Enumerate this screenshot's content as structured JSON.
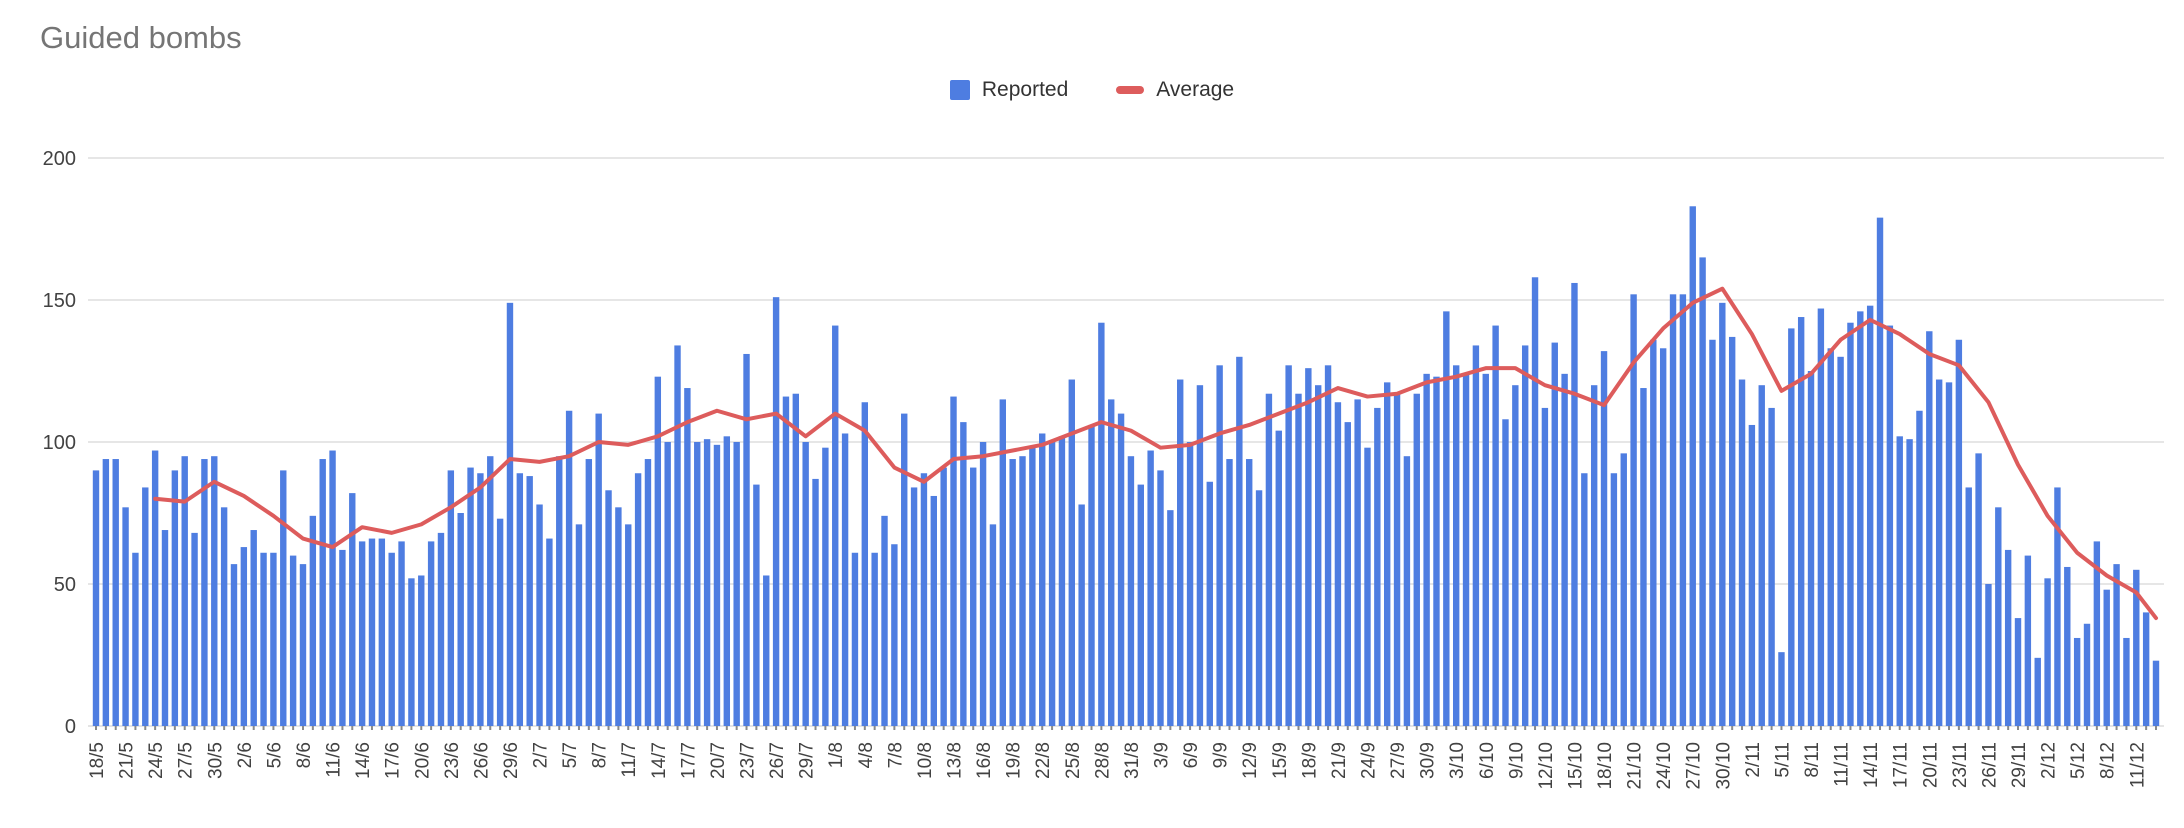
{
  "title": "Guided bombs",
  "legend": {
    "reported": "Reported",
    "average": "Average"
  },
  "colors": {
    "bar": "#4e7de1",
    "line": "#dd5c5c",
    "title_text": "#757575",
    "axis_text": "#424242",
    "legend_text": "#333333",
    "gridline": "#e6e6e6",
    "baseline": "#c9c9c9",
    "tick": "#8a8a8a",
    "background": "#ffffff"
  },
  "y_axis_tick_labels": [
    "0",
    "50",
    "100",
    "150",
    "200"
  ],
  "chart_data": {
    "type": "bar",
    "title": "Guided bombs",
    "xlabel": "",
    "ylabel": "",
    "ylim": [
      0,
      200
    ],
    "y_ticks": [
      0,
      50,
      100,
      150,
      200
    ],
    "grid": true,
    "legend_position": "top-center",
    "x_tick_every": 3,
    "categories": [
      "18/5",
      "19/5",
      "20/5",
      "21/5",
      "22/5",
      "23/5",
      "24/5",
      "25/5",
      "26/5",
      "27/5",
      "28/5",
      "29/5",
      "30/5",
      "31/5",
      "1/6",
      "2/6",
      "3/6",
      "4/6",
      "5/6",
      "6/6",
      "7/6",
      "8/6",
      "9/6",
      "10/6",
      "11/6",
      "12/6",
      "13/6",
      "14/6",
      "15/6",
      "16/6",
      "17/6",
      "18/6",
      "19/6",
      "20/6",
      "21/6",
      "22/6",
      "23/6",
      "24/6",
      "25/6",
      "26/6",
      "27/6",
      "28/6",
      "29/6",
      "30/6",
      "1/7",
      "2/7",
      "3/7",
      "4/7",
      "5/7",
      "6/7",
      "7/7",
      "8/7",
      "9/7",
      "10/7",
      "11/7",
      "12/7",
      "13/7",
      "14/7",
      "15/7",
      "16/7",
      "17/7",
      "18/7",
      "19/7",
      "20/7",
      "21/7",
      "22/7",
      "23/7",
      "24/7",
      "25/7",
      "26/7",
      "27/7",
      "28/7",
      "29/7",
      "30/7",
      "31/7",
      "1/8",
      "2/8",
      "3/8",
      "4/8",
      "5/8",
      "6/8",
      "7/8",
      "8/8",
      "9/8",
      "10/8",
      "11/8",
      "12/8",
      "13/8",
      "14/8",
      "15/8",
      "16/8",
      "17/8",
      "18/8",
      "19/8",
      "20/8",
      "21/8",
      "22/8",
      "23/8",
      "24/8",
      "25/8",
      "26/8",
      "27/8",
      "28/8",
      "29/8",
      "30/8",
      "31/8",
      "1/9",
      "2/9",
      "3/9",
      "4/9",
      "5/9",
      "6/9",
      "7/9",
      "8/9",
      "9/9",
      "10/9",
      "11/9",
      "12/9",
      "13/9",
      "14/9",
      "15/9",
      "16/9",
      "17/9",
      "18/9",
      "19/9",
      "20/9",
      "21/9",
      "22/9",
      "23/9",
      "24/9",
      "25/9",
      "26/9",
      "27/9",
      "28/9",
      "29/9",
      "30/9",
      "1/10",
      "2/10",
      "3/10",
      "4/10",
      "5/10",
      "6/10",
      "7/10",
      "8/10",
      "9/10",
      "10/10",
      "11/10",
      "12/10",
      "13/10",
      "14/10",
      "15/10",
      "16/10",
      "17/10",
      "18/10",
      "19/10",
      "20/10",
      "21/10",
      "22/10",
      "23/10",
      "24/10",
      "25/10",
      "26/10",
      "27/10",
      "28/10",
      "29/10",
      "30/10",
      "31/10",
      "1/11",
      "2/11",
      "3/11",
      "4/11",
      "5/11",
      "6/11",
      "7/11",
      "8/11",
      "9/11",
      "10/11",
      "11/11",
      "12/11",
      "13/11",
      "14/11",
      "15/11",
      "16/11",
      "17/11",
      "18/11",
      "19/11",
      "20/11",
      "21/11",
      "22/11",
      "23/11",
      "24/11",
      "25/11",
      "26/11",
      "27/11",
      "28/11",
      "29/11",
      "30/11",
      "1/12",
      "2/12",
      "3/12",
      "4/12",
      "5/12",
      "6/12",
      "7/12",
      "8/12",
      "9/12",
      "10/12",
      "11/12",
      "12/12",
      "13/12"
    ],
    "series": [
      {
        "name": "Reported",
        "type": "bar",
        "color": "#4e7de1",
        "values": [
          90,
          94,
          94,
          77,
          61,
          84,
          97,
          69,
          90,
          95,
          68,
          94,
          95,
          77,
          57,
          63,
          69,
          61,
          61,
          90,
          60,
          57,
          74,
          94,
          97,
          62,
          82,
          65,
          66,
          66,
          61,
          65,
          52,
          53,
          65,
          68,
          90,
          75,
          91,
          89,
          95,
          73,
          149,
          89,
          88,
          78,
          66,
          95,
          111,
          71,
          94,
          110,
          83,
          77,
          71,
          89,
          94,
          123,
          100,
          134,
          119,
          100,
          101,
          99,
          102,
          100,
          131,
          85,
          53,
          151,
          116,
          117,
          100,
          87,
          98,
          141,
          103,
          61,
          114,
          61,
          74,
          64,
          110,
          84,
          89,
          81,
          91,
          116,
          107,
          91,
          100,
          71,
          115,
          94,
          95,
          98,
          103,
          100,
          102,
          122,
          78,
          106,
          142,
          115,
          110,
          95,
          85,
          97,
          90,
          76,
          122,
          100,
          120,
          86,
          127,
          94,
          130,
          94,
          83,
          117,
          104,
          127,
          117,
          126,
          120,
          127,
          114,
          107,
          115,
          98,
          112,
          121,
          117,
          95,
          117,
          124,
          123,
          146,
          127,
          124,
          134,
          124,
          141,
          108,
          120,
          134,
          158,
          112,
          135,
          124,
          156,
          89,
          120,
          132,
          89,
          96,
          152,
          119,
          136,
          133,
          152,
          152,
          183,
          165,
          136,
          149,
          137,
          122,
          106,
          120,
          112,
          26,
          140,
          144,
          125,
          147,
          133,
          130,
          142,
          146,
          148,
          179,
          141,
          102,
          101,
          111,
          139,
          122,
          121,
          136,
          84,
          96,
          50,
          77,
          62,
          38,
          60,
          24,
          52,
          84,
          56,
          31,
          36,
          65,
          48,
          57,
          31,
          55,
          40,
          23
        ]
      },
      {
        "name": "Average",
        "type": "line",
        "color": "#dd5c5c",
        "points": [
          [
            6,
            80
          ],
          [
            9,
            79
          ],
          [
            12,
            86
          ],
          [
            15,
            81
          ],
          [
            18,
            74
          ],
          [
            21,
            66
          ],
          [
            24,
            63
          ],
          [
            27,
            70
          ],
          [
            30,
            68
          ],
          [
            33,
            71
          ],
          [
            36,
            77
          ],
          [
            39,
            84
          ],
          [
            42,
            94
          ],
          [
            45,
            93
          ],
          [
            48,
            95
          ],
          [
            51,
            100
          ],
          [
            54,
            99
          ],
          [
            57,
            102
          ],
          [
            60,
            107
          ],
          [
            63,
            111
          ],
          [
            66,
            108
          ],
          [
            69,
            110
          ],
          [
            72,
            102
          ],
          [
            75,
            110
          ],
          [
            78,
            104
          ],
          [
            81,
            91
          ],
          [
            84,
            86
          ],
          [
            87,
            94
          ],
          [
            90,
            95
          ],
          [
            93,
            97
          ],
          [
            96,
            99
          ],
          [
            99,
            103
          ],
          [
            102,
            107
          ],
          [
            105,
            104
          ],
          [
            108,
            98
          ],
          [
            111,
            99
          ],
          [
            114,
            103
          ],
          [
            117,
            106
          ],
          [
            120,
            110
          ],
          [
            123,
            114
          ],
          [
            126,
            119
          ],
          [
            129,
            116
          ],
          [
            132,
            117
          ],
          [
            135,
            121
          ],
          [
            138,
            123
          ],
          [
            141,
            126
          ],
          [
            144,
            126
          ],
          [
            147,
            120
          ],
          [
            150,
            117
          ],
          [
            153,
            113
          ],
          [
            156,
            128
          ],
          [
            159,
            140
          ],
          [
            162,
            149
          ],
          [
            165,
            154
          ],
          [
            168,
            138
          ],
          [
            171,
            118
          ],
          [
            174,
            124
          ],
          [
            177,
            136
          ],
          [
            180,
            143
          ],
          [
            183,
            138
          ],
          [
            186,
            131
          ],
          [
            189,
            127
          ],
          [
            192,
            114
          ],
          [
            195,
            92
          ],
          [
            198,
            74
          ],
          [
            201,
            61
          ],
          [
            204,
            53
          ],
          [
            207,
            47
          ],
          [
            209,
            38
          ]
        ]
      }
    ]
  }
}
